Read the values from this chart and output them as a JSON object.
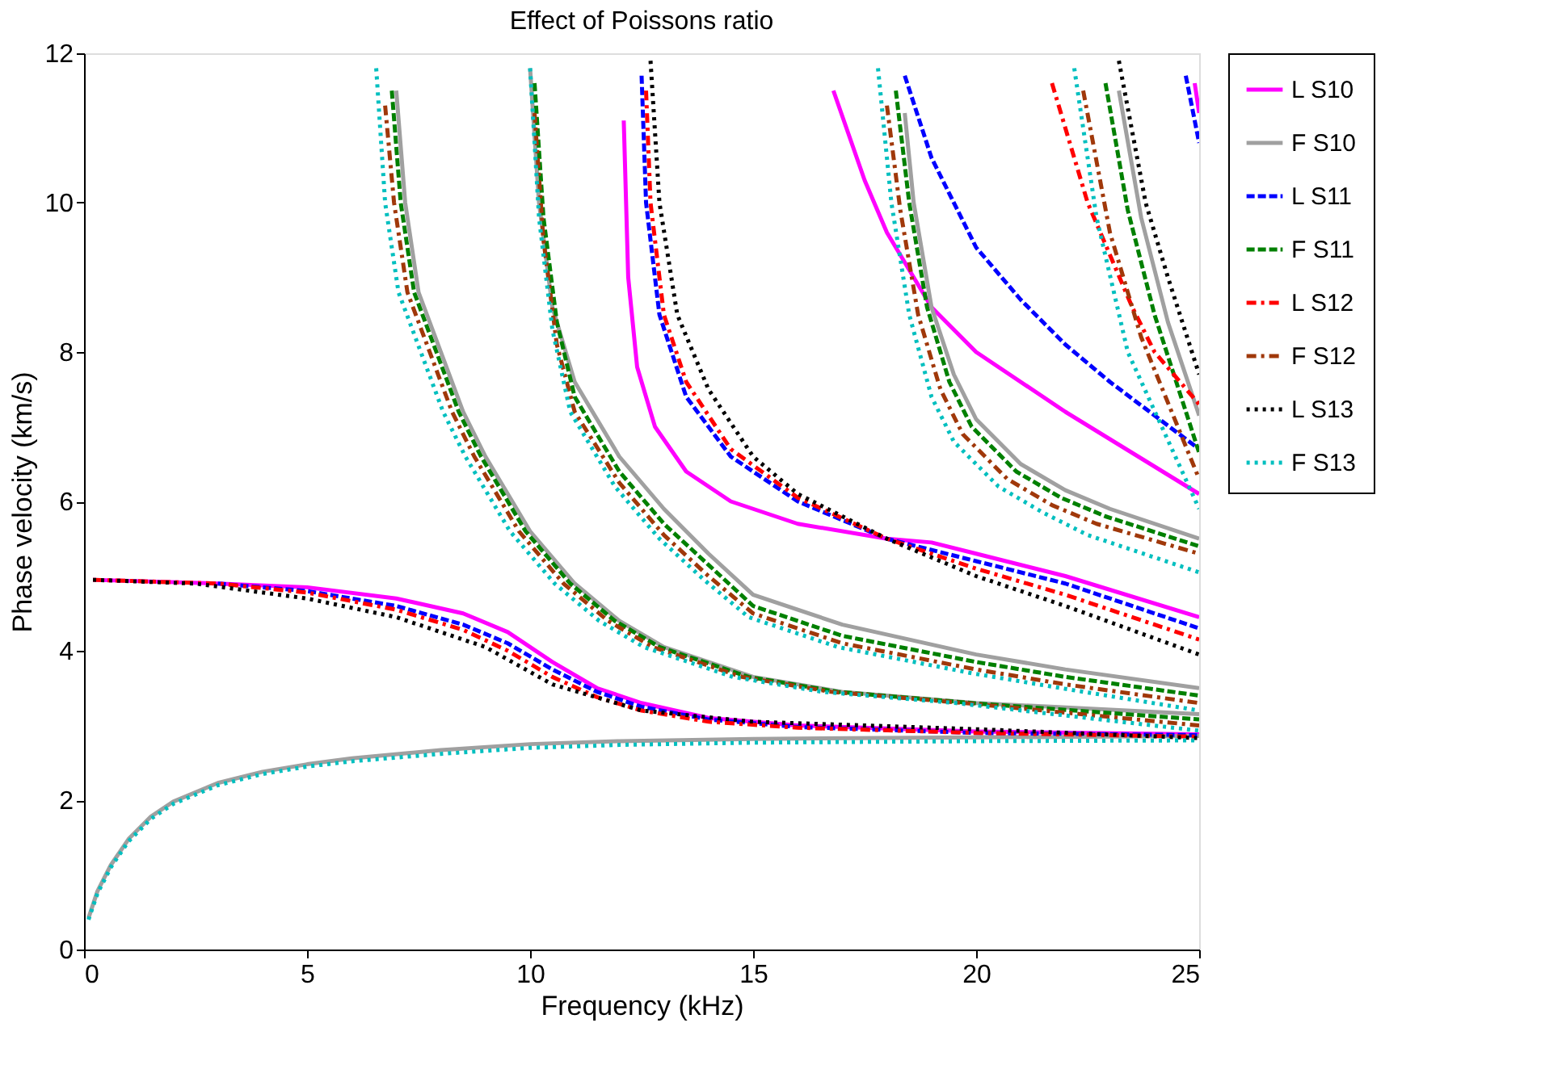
{
  "chart_data": {
    "type": "line",
    "title": "Effect of Poissons ratio",
    "xlabel": "Frequency (kHz)",
    "ylabel": "Phase velocity (km/s)",
    "xlim": [
      0,
      25
    ],
    "ylim": [
      0,
      12
    ],
    "xticks": [
      0,
      5,
      10,
      15,
      20,
      25
    ],
    "yticks": [
      0,
      2,
      4,
      6,
      8,
      10,
      12
    ],
    "grid": false,
    "legend": "right",
    "marker": "none",
    "series": [
      {
        "name": "L S10",
        "color": "#ff00ff",
        "line_style": "solid",
        "x": [
          0.2,
          3,
          5,
          7,
          8.5,
          9.5,
          10.5,
          11.5,
          12.5,
          14,
          16,
          20,
          25,
          null,
          12.1,
          12.2,
          12.4,
          12.8,
          13.5,
          14.5,
          16,
          18,
          19,
          20,
          22,
          25,
          null,
          16.8,
          17.5,
          18,
          19,
          20,
          22,
          25,
          null,
          24.9,
          25
        ],
        "values": [
          4.95,
          4.9,
          4.85,
          4.7,
          4.5,
          4.25,
          3.85,
          3.5,
          3.3,
          3.1,
          3.0,
          2.92,
          2.88,
          null,
          11.1,
          9,
          7.8,
          7,
          6.4,
          6.0,
          5.7,
          5.5,
          5.45,
          5.3,
          5.0,
          4.45,
          null,
          11.5,
          10.3,
          9.6,
          8.6,
          8.0,
          7.2,
          6.1,
          null,
          11.6,
          11.2
        ]
      },
      {
        "name": "F S10",
        "color": "#a0a0a0",
        "line_style": "solid",
        "x": [
          0.1,
          0.3,
          0.6,
          1,
          1.5,
          2,
          3,
          4,
          5,
          6,
          8,
          10,
          12,
          15,
          20,
          25,
          null,
          7.0,
          7.2,
          7.5,
          8,
          8.5,
          9,
          10,
          11,
          12,
          13,
          15,
          17,
          20,
          25,
          null,
          10.0,
          10.2,
          10.5,
          11,
          12,
          13,
          14,
          15,
          17,
          20,
          22,
          25,
          null,
          18.4,
          18.6,
          19,
          19.5,
          20,
          21,
          22,
          23,
          25,
          null,
          23.2,
          23.7,
          24.3,
          25
        ],
        "values": [
          0.42,
          0.78,
          1.13,
          1.48,
          1.78,
          1.98,
          2.23,
          2.38,
          2.48,
          2.56,
          2.67,
          2.75,
          2.79,
          2.82,
          2.84,
          2.86,
          null,
          11.5,
          10,
          8.8,
          8.0,
          7.2,
          6.6,
          5.6,
          4.9,
          4.4,
          4.05,
          3.65,
          3.45,
          3.3,
          3.15,
          null,
          11.8,
          10,
          8.6,
          7.6,
          6.6,
          5.9,
          5.3,
          4.75,
          4.35,
          3.95,
          3.75,
          3.5,
          null,
          11.2,
          10,
          8.6,
          7.7,
          7.1,
          6.5,
          6.15,
          5.9,
          5.5,
          null,
          11.5,
          9.8,
          8.4,
          7.15
        ]
      },
      {
        "name": "L S11",
        "color": "#0000ff",
        "line_style": "dashed",
        "x": [
          3,
          5,
          7,
          8.5,
          9.5,
          10.5,
          11.5,
          12.5,
          14,
          16,
          20,
          25,
          null,
          12.5,
          12.6,
          12.9,
          13.5,
          14.5,
          16,
          18,
          20,
          22,
          25,
          null,
          18.4,
          19,
          20,
          21,
          22,
          23,
          25,
          null,
          24.7,
          25
        ],
        "values": [
          4.9,
          4.8,
          4.6,
          4.35,
          4.1,
          3.75,
          3.45,
          3.25,
          3.08,
          2.98,
          2.9,
          2.87,
          null,
          11.7,
          10,
          8.5,
          7.4,
          6.6,
          6.0,
          5.5,
          5.2,
          4.9,
          4.3,
          null,
          11.7,
          10.6,
          9.4,
          8.7,
          8.1,
          7.6,
          6.7,
          null,
          11.7,
          10.8
        ]
      },
      {
        "name": "F S11",
        "color": "#008000",
        "line_style": "dashed",
        "x": [
          6.9,
          7.1,
          7.4,
          7.9,
          8.4,
          8.9,
          9.9,
          10.9,
          11.9,
          12.9,
          14.9,
          16.9,
          19.9,
          25,
          null,
          10.1,
          10.3,
          10.6,
          11,
          12,
          13,
          14,
          15,
          17,
          20,
          22,
          25,
          null,
          18.2,
          18.5,
          18.9,
          19.4,
          19.9,
          20.9,
          21.9,
          22.9,
          25,
          null,
          22.9,
          23.4,
          24,
          25
        ],
        "values": [
          11.5,
          10,
          8.8,
          8.0,
          7.2,
          6.6,
          5.6,
          4.9,
          4.4,
          4.05,
          3.65,
          3.45,
          3.3,
          3.08,
          null,
          11.6,
          9.8,
          8.4,
          7.4,
          6.4,
          5.7,
          5.15,
          4.6,
          4.2,
          3.85,
          3.65,
          3.4,
          null,
          11.5,
          10,
          8.6,
          7.6,
          7.0,
          6.4,
          6.05,
          5.8,
          5.4,
          null,
          11.6,
          9.9,
          8.5,
          6.65
        ]
      },
      {
        "name": "L S12",
        "color": "#ff0000",
        "line_style": "dashdot",
        "x": [
          0.2,
          3,
          5,
          7,
          8.5,
          9.5,
          10.5,
          11.5,
          12.5,
          14,
          16,
          20,
          25,
          null,
          12.6,
          12.7,
          13,
          13.5,
          14.5,
          16,
          18,
          20,
          22,
          25,
          null,
          21.7,
          22.5,
          23.5,
          24,
          25
        ],
        "values": [
          4.95,
          4.9,
          4.78,
          4.55,
          4.28,
          4.0,
          3.65,
          3.38,
          3.2,
          3.05,
          2.97,
          2.9,
          2.85,
          null,
          11.5,
          10,
          8.5,
          7.6,
          6.7,
          6.05,
          5.5,
          5.1,
          4.75,
          4.15,
          null,
          11.6,
          10,
          8.6,
          8.0,
          7.3
        ]
      },
      {
        "name": "F S12",
        "color": "#a0380a",
        "line_style": "dashdot",
        "x": [
          6.75,
          6.95,
          7.25,
          7.75,
          8.25,
          8.75,
          9.75,
          10.75,
          11.75,
          12.75,
          14.75,
          16.75,
          19.75,
          25,
          null,
          10.1,
          10.3,
          10.6,
          11,
          12,
          13,
          14,
          15,
          17,
          20,
          22,
          25,
          null,
          18.0,
          18.3,
          18.7,
          19.2,
          19.7,
          20.7,
          21.7,
          22.7,
          25,
          null,
          22.4,
          23,
          23.7,
          25
        ],
        "values": [
          11.3,
          10,
          8.8,
          8.0,
          7.2,
          6.6,
          5.6,
          4.9,
          4.4,
          4.05,
          3.65,
          3.45,
          3.3,
          3.0,
          null,
          11.2,
          9.5,
          8.1,
          7.2,
          6.25,
          5.55,
          5.0,
          4.5,
          4.1,
          3.75,
          3.55,
          3.3,
          null,
          11.3,
          9.9,
          8.5,
          7.5,
          6.9,
          6.3,
          5.95,
          5.7,
          5.3,
          null,
          11.5,
          9.6,
          8.2,
          6.3
        ]
      },
      {
        "name": "L S13",
        "color": "#000000",
        "line_style": "dotted",
        "x": [
          0.2,
          2.5,
          5,
          7,
          9,
          10.5,
          12.5,
          15,
          20,
          25,
          null,
          12.7,
          12.9,
          13.3,
          14,
          15,
          16,
          18,
          20,
          22,
          25,
          null,
          23.2,
          23.8,
          24.3,
          25
        ],
        "values": [
          4.95,
          4.9,
          4.7,
          4.45,
          4.05,
          3.55,
          3.2,
          3.05,
          2.95,
          2.83,
          null,
          11.9,
          10,
          8.5,
          7.5,
          6.6,
          6.1,
          5.5,
          5.0,
          4.6,
          3.95,
          null,
          11.9,
          10,
          9,
          7.7
        ]
      },
      {
        "name": "F S13",
        "color": "#00bfbf",
        "line_style": "dotted",
        "x": [
          0.1,
          0.3,
          0.6,
          1,
          1.5,
          2,
          3,
          4,
          5,
          6,
          8,
          10,
          12,
          15,
          20,
          25,
          null,
          6.55,
          6.75,
          7.05,
          7.55,
          8.05,
          8.55,
          9.55,
          10.55,
          11.55,
          12.55,
          14.55,
          16.55,
          19.55,
          25,
          null,
          10.0,
          10.2,
          10.5,
          10.9,
          11.9,
          12.9,
          13.9,
          14.9,
          16.9,
          19.9,
          21.9,
          25,
          null,
          17.8,
          18.1,
          18.5,
          19,
          19.5,
          20.5,
          21.5,
          22.5,
          25,
          null,
          22.2,
          22.7,
          23.4,
          25
        ],
        "values": [
          0.4,
          0.75,
          1.1,
          1.45,
          1.75,
          1.95,
          2.2,
          2.35,
          2.45,
          2.52,
          2.62,
          2.7,
          2.74,
          2.77,
          2.79,
          2.8,
          null,
          11.8,
          10,
          8.8,
          8.0,
          7.2,
          6.6,
          5.6,
          4.9,
          4.4,
          4.05,
          3.65,
          3.45,
          3.3,
          2.93,
          null,
          11.8,
          9.8,
          8.3,
          7.2,
          6.2,
          5.5,
          4.95,
          4.45,
          4.05,
          3.7,
          3.5,
          3.2,
          null,
          11.8,
          10,
          8.5,
          7.4,
          6.8,
          6.2,
          5.85,
          5.55,
          5.05,
          null,
          11.8,
          9.8,
          8.0,
          5.9
        ]
      }
    ]
  }
}
